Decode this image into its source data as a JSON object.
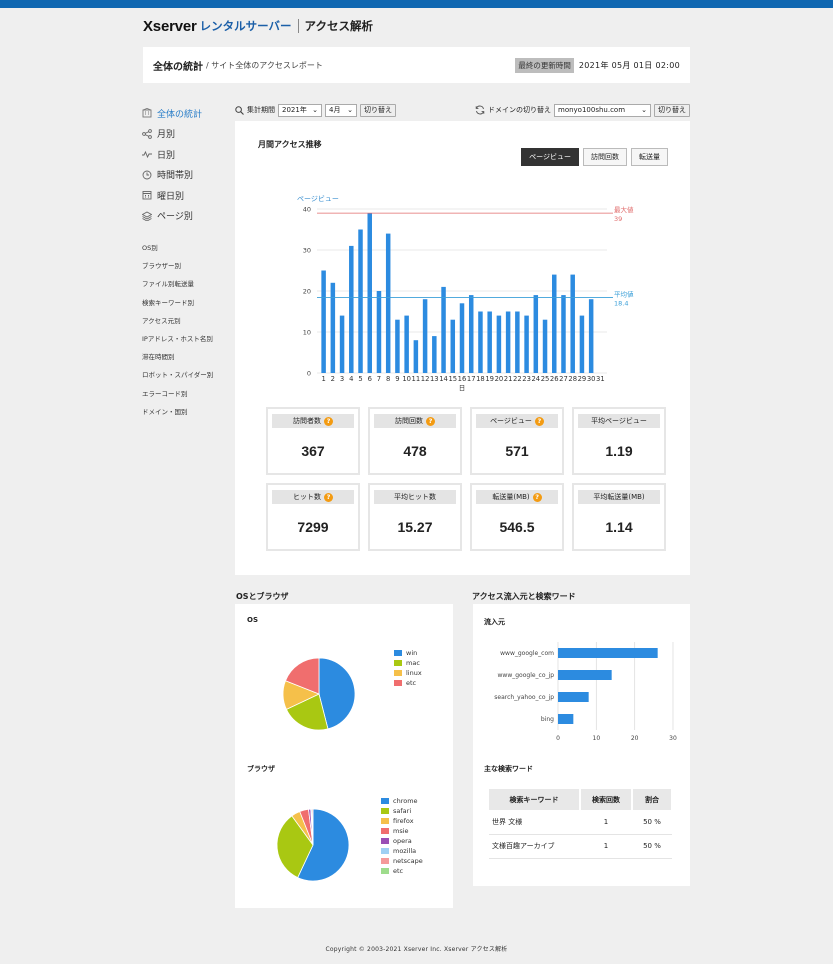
{
  "header": {
    "logo": "Xserver",
    "logo_sub": "レンタルサーバー",
    "app_title": "アクセス解析"
  },
  "page": {
    "title": "全体の統計",
    "subtitle": "/ サイト全体のアクセスレポート",
    "updated_label": "最終の更新時間",
    "updated_value": "2021年 05月 01日 02:00"
  },
  "sidebar": {
    "main_items": [
      {
        "label": "全体の統計",
        "icon": "building-icon",
        "active": true
      },
      {
        "label": "月別",
        "icon": "share-icon"
      },
      {
        "label": "日別",
        "icon": "pulse-icon"
      },
      {
        "label": "時間帯別",
        "icon": "clock-icon"
      },
      {
        "label": "曜日別",
        "icon": "calendar-icon"
      },
      {
        "label": "ページ別",
        "icon": "layers-icon"
      }
    ],
    "sub_items": [
      "OS別",
      "ブラウザー別",
      "ファイル別転送量",
      "検索キーワード別",
      "アクセス元別",
      "IPアドレス・ホスト名別",
      "滞在時間別",
      "ロボット・スパイダー別",
      "エラーコード別",
      "ドメイン・国別"
    ]
  },
  "filter": {
    "period_label": "集計期間",
    "year": "2021年",
    "month": "4月",
    "switch_label": "切り替え",
    "domain_label": "ドメインの切り替え",
    "domain": "monyo100shu.com"
  },
  "monthly": {
    "title": "月間アクセス推移",
    "tabs": [
      "ページビュー",
      "訪問回数",
      "転送量"
    ],
    "active_tab": 0
  },
  "chart_data": {
    "type": "bar",
    "ylabel": "ページビュー",
    "xlabel": "日",
    "ylim": [
      0,
      40
    ],
    "yticks": [
      0,
      10,
      20,
      30,
      40
    ],
    "categories": [
      "1",
      "2",
      "3",
      "4",
      "5",
      "6",
      "7",
      "8",
      "9",
      "10",
      "11",
      "12",
      "13",
      "14",
      "15",
      "16",
      "17",
      "18",
      "19",
      "20",
      "21",
      "22",
      "23",
      "24",
      "25",
      "26",
      "27",
      "28",
      "29",
      "30",
      "31"
    ],
    "values": [
      25,
      22,
      14,
      31,
      35,
      39,
      20,
      34,
      13,
      14,
      8,
      18,
      9,
      21,
      13,
      17,
      19,
      15,
      15,
      14,
      15,
      15,
      14,
      19,
      13,
      24,
      19,
      24,
      14,
      18,
      0
    ],
    "max_label": "最大値",
    "max_value": "39",
    "avg_label": "平均値",
    "avg_value": "18.4",
    "bar_color": "#2c8be0",
    "max_color": "#e06a6a",
    "avg_color": "#3a9fd8"
  },
  "stats": [
    {
      "label": "訪問者数",
      "value": "367",
      "help": true
    },
    {
      "label": "訪問回数",
      "value": "478",
      "help": true
    },
    {
      "label": "ページビュー",
      "value": "571",
      "help": true
    },
    {
      "label": "平均ページビュー",
      "value": "1.19",
      "help": false
    },
    {
      "label": "ヒット数",
      "value": "7299",
      "help": true
    },
    {
      "label": "平均ヒット数",
      "value": "15.27",
      "help": false
    },
    {
      "label": "転送量(MB)",
      "value": "546.5",
      "help": true
    },
    {
      "label": "平均転送量(MB)",
      "value": "1.14",
      "help": false
    }
  ],
  "os_browser": {
    "section_title": "OSとブラウザ",
    "os_title": "OS",
    "os_slices": [
      {
        "name": "win",
        "value": 46,
        "color": "#2c8be0"
      },
      {
        "name": "mac",
        "value": 22,
        "color": "#a9c812"
      },
      {
        "name": "linux",
        "value": 13,
        "color": "#f5c04a"
      },
      {
        "name": "etc",
        "value": 19,
        "color": "#f06e6e"
      }
    ],
    "browser_title": "ブラウザ",
    "browser_slices": [
      {
        "name": "chrome",
        "value": 57,
        "color": "#2c8be0"
      },
      {
        "name": "safari",
        "value": 33,
        "color": "#a9c812"
      },
      {
        "name": "firefox",
        "value": 4,
        "color": "#f5c04a"
      },
      {
        "name": "msie",
        "value": 4,
        "color": "#f06e6e"
      },
      {
        "name": "opera",
        "value": 1,
        "color": "#9a4fb5"
      },
      {
        "name": "mozilla",
        "value": 0.5,
        "color": "#9fd0f3"
      },
      {
        "name": "netscape",
        "value": 0.5,
        "color": "#f59a9a"
      },
      {
        "name": "etc",
        "value": 0,
        "color": "#9edc8c"
      }
    ]
  },
  "referrer": {
    "section_title": "アクセス流入元と検索ワード",
    "source_title": "流入元",
    "bars": [
      {
        "name": "www_google_com",
        "value": 26
      },
      {
        "name": "www_google_co_jp",
        "value": 14
      },
      {
        "name": "search_yahoo_co_jp",
        "value": 8
      },
      {
        "name": "bing",
        "value": 4
      }
    ],
    "xticks": [
      "0",
      "10",
      "20",
      "30"
    ],
    "xmax": 30,
    "keywords_title": "主な検索ワード",
    "table_headers": [
      "検索キーワード",
      "検索回数",
      "割合"
    ],
    "rows": [
      [
        "世界 文様",
        "1",
        "50 %"
      ],
      [
        "文様百趣アーカイブ",
        "1",
        "50 %"
      ]
    ]
  },
  "footer": "Copyright © 2003-2021 Xserver Inc.  Xserver アクセス解析"
}
